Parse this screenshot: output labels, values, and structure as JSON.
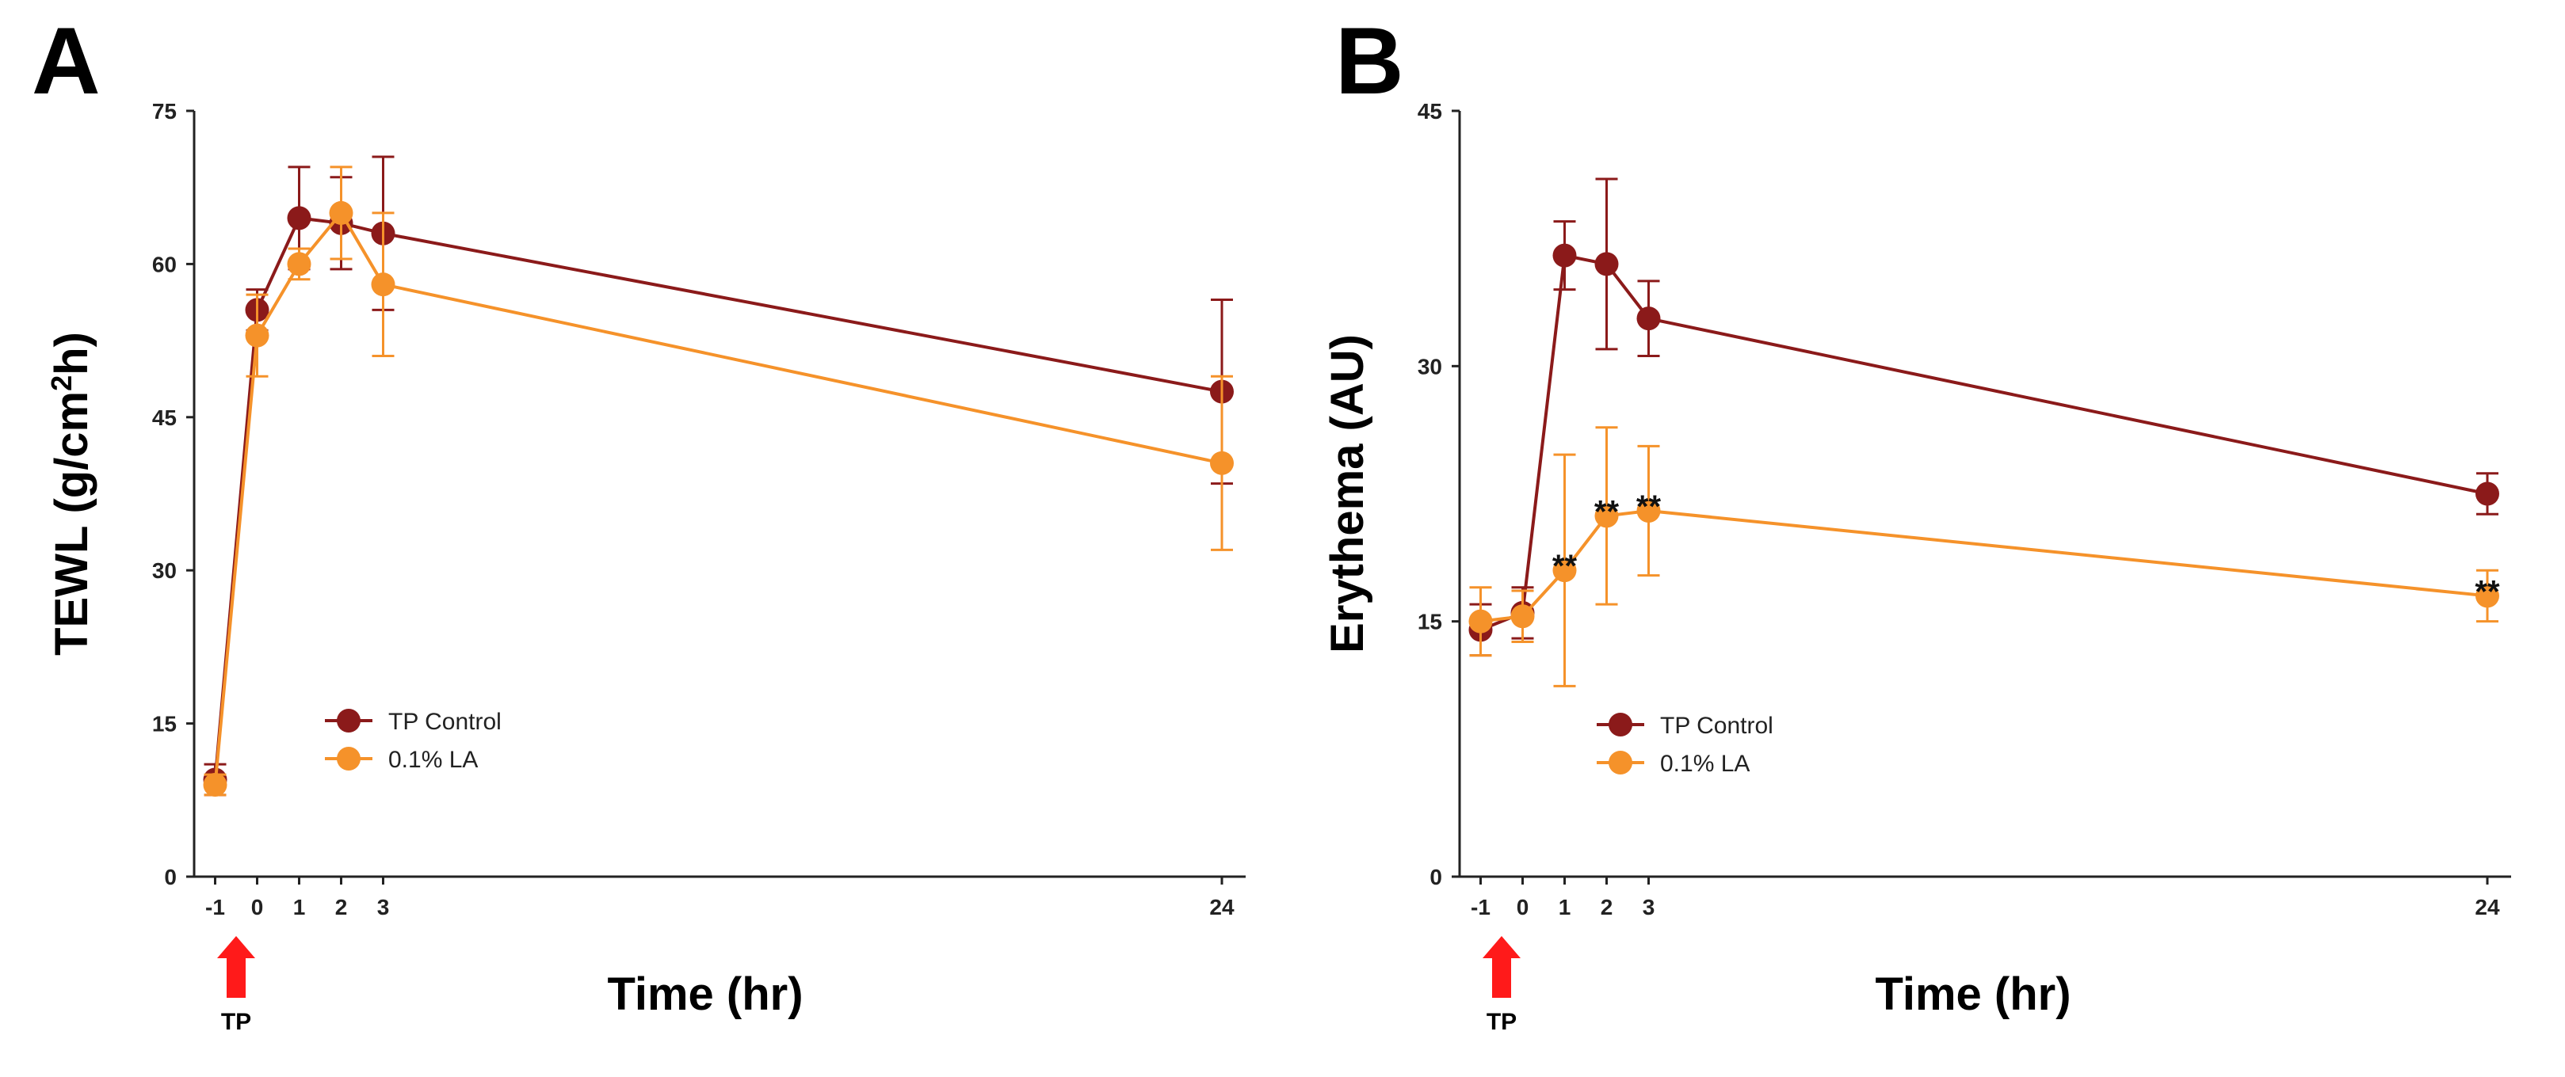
{
  "chart_data": [
    {
      "type": "line",
      "panel_label": "A",
      "xlabel": "Time (hr)",
      "ylabel_html": "TEWL (g/cm²h)",
      "ylabel_parts": [
        "TEWL (g/cm",
        "2",
        "h)"
      ],
      "ylim": [
        0,
        75
      ],
      "yticks": [
        0,
        15,
        30,
        45,
        60,
        75
      ],
      "xticks": [
        -1,
        0,
        1,
        2,
        3,
        24
      ],
      "x": [
        -1,
        0,
        1,
        2,
        3,
        24
      ],
      "grid": false,
      "legend_position": "lower-left",
      "marker_annotation": {
        "x": 0,
        "label": "TP"
      },
      "series": [
        {
          "name": "TP Control",
          "color": "#8b1a1a",
          "values": [
            9.5,
            55.5,
            64.5,
            64.0,
            63.0,
            47.5
          ],
          "errors": [
            1.5,
            2.0,
            5.0,
            4.5,
            7.5,
            9.0
          ],
          "annotations": [
            "",
            "",
            "",
            "",
            "",
            ""
          ]
        },
        {
          "name": "0.1% LA",
          "color": "#f5922a",
          "values": [
            9.0,
            53.0,
            60.0,
            65.0,
            58.0,
            40.5
          ],
          "errors": [
            1.0,
            4.0,
            1.5,
            4.5,
            7.0,
            8.5
          ],
          "annotations": [
            "",
            "",
            "",
            "",
            "",
            ""
          ]
        }
      ]
    },
    {
      "type": "line",
      "panel_label": "B",
      "xlabel": "Time (hr)",
      "ylabel_html": "Erythema (AU)",
      "ylabel_parts": [
        "Erythema (AU)",
        "",
        ""
      ],
      "ylim": [
        0,
        45
      ],
      "yticks": [
        0,
        15,
        30,
        45
      ],
      "xticks": [
        -1,
        0,
        1,
        2,
        3,
        24
      ],
      "x": [
        -1,
        0,
        1,
        2,
        3,
        24
      ],
      "grid": false,
      "legend_position": "lower-left",
      "marker_annotation": {
        "x": 0,
        "label": "TP"
      },
      "series": [
        {
          "name": "TP Control",
          "color": "#8b1a1a",
          "values": [
            14.5,
            15.5,
            36.5,
            36.0,
            32.8,
            22.5
          ],
          "errors": [
            1.5,
            1.5,
            2.0,
            5.0,
            2.2,
            1.2
          ],
          "annotations": [
            "",
            "",
            "",
            "",
            "",
            ""
          ]
        },
        {
          "name": "0.1% LA",
          "color": "#f5922a",
          "values": [
            15.0,
            15.3,
            18.0,
            21.2,
            21.5,
            16.5
          ],
          "errors": [
            2.0,
            1.5,
            6.8,
            5.2,
            3.8,
            1.5
          ],
          "annotations": [
            "",
            "",
            "**",
            "**",
            "**",
            "**"
          ]
        }
      ]
    }
  ]
}
